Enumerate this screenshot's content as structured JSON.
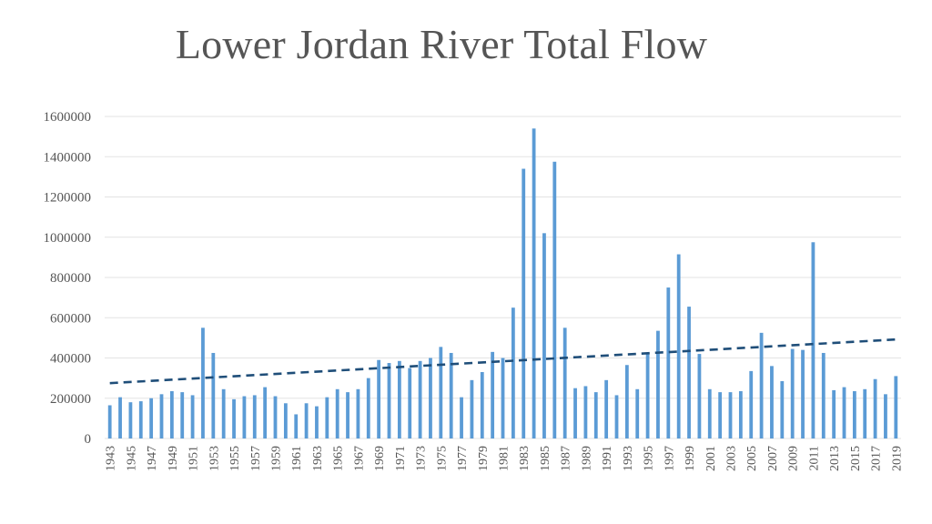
{
  "chart_data": {
    "type": "bar",
    "title": "Lower Jordan River Total Flow",
    "xlabel": "",
    "ylabel": "",
    "ylim": [
      0,
      1600000
    ],
    "yticks": [
      0,
      200000,
      400000,
      600000,
      800000,
      1000000,
      1200000,
      1400000,
      1600000
    ],
    "ytick_labels": [
      "0",
      "200000",
      "400000",
      "600000",
      "800000",
      "1000000",
      "1200000",
      "1400000",
      "1600000"
    ],
    "grid": true,
    "bar_color": "#5b9bd5",
    "trendline": {
      "type": "linear",
      "style": "dashed",
      "color": "#1f4e79",
      "start": 275000,
      "end": 492000
    },
    "categories": [
      "1943",
      "1944",
      "1945",
      "1946",
      "1947",
      "1948",
      "1949",
      "1950",
      "1951",
      "1952",
      "1953",
      "1954",
      "1955",
      "1956",
      "1957",
      "1958",
      "1959",
      "1960",
      "1961",
      "1962",
      "1963",
      "1964",
      "1965",
      "1966",
      "1967",
      "1968",
      "1969",
      "1970",
      "1971",
      "1972",
      "1973",
      "1974",
      "1975",
      "1976",
      "1977",
      "1978",
      "1979",
      "1980",
      "1981",
      "1982",
      "1983",
      "1984",
      "1985",
      "1986",
      "1987",
      "1988",
      "1989",
      "1990",
      "1991",
      "1992",
      "1993",
      "1994",
      "1995",
      "1996",
      "1997",
      "1998",
      "1999",
      "2000",
      "2001",
      "2002",
      "2003",
      "2004",
      "2005",
      "2006",
      "2007",
      "2008",
      "2009",
      "2010",
      "2011",
      "2012",
      "2013",
      "2014",
      "2015",
      "2016",
      "2017",
      "2018",
      "2019"
    ],
    "x_tick_labels": [
      "1943",
      "1945",
      "1947",
      "1949",
      "1951",
      "1953",
      "1955",
      "1957",
      "1959",
      "1961",
      "1963",
      "1965",
      "1967",
      "1969",
      "1971",
      "1973",
      "1975",
      "1977",
      "1979",
      "1981",
      "1983",
      "1985",
      "1987",
      "1989",
      "1991",
      "1993",
      "1995",
      "1997",
      "1999",
      "2001",
      "2003",
      "2005",
      "2007",
      "2009",
      "2011",
      "2013",
      "2015",
      "2017",
      "2019"
    ],
    "values": [
      165000,
      205000,
      180000,
      185000,
      200000,
      220000,
      235000,
      230000,
      215000,
      550000,
      425000,
      245000,
      195000,
      210000,
      215000,
      255000,
      210000,
      175000,
      120000,
      175000,
      160000,
      205000,
      245000,
      230000,
      245000,
      300000,
      390000,
      375000,
      385000,
      350000,
      385000,
      400000,
      455000,
      425000,
      205000,
      290000,
      330000,
      430000,
      400000,
      650000,
      1340000,
      1540000,
      1020000,
      1375000,
      550000,
      250000,
      260000,
      230000,
      290000,
      215000,
      365000,
      245000,
      425000,
      535000,
      750000,
      915000,
      655000,
      420000,
      245000,
      230000,
      230000,
      235000,
      335000,
      525000,
      360000,
      285000,
      445000,
      440000,
      975000,
      425000,
      240000,
      255000,
      235000,
      245000,
      295000,
      220000,
      310000
    ]
  }
}
